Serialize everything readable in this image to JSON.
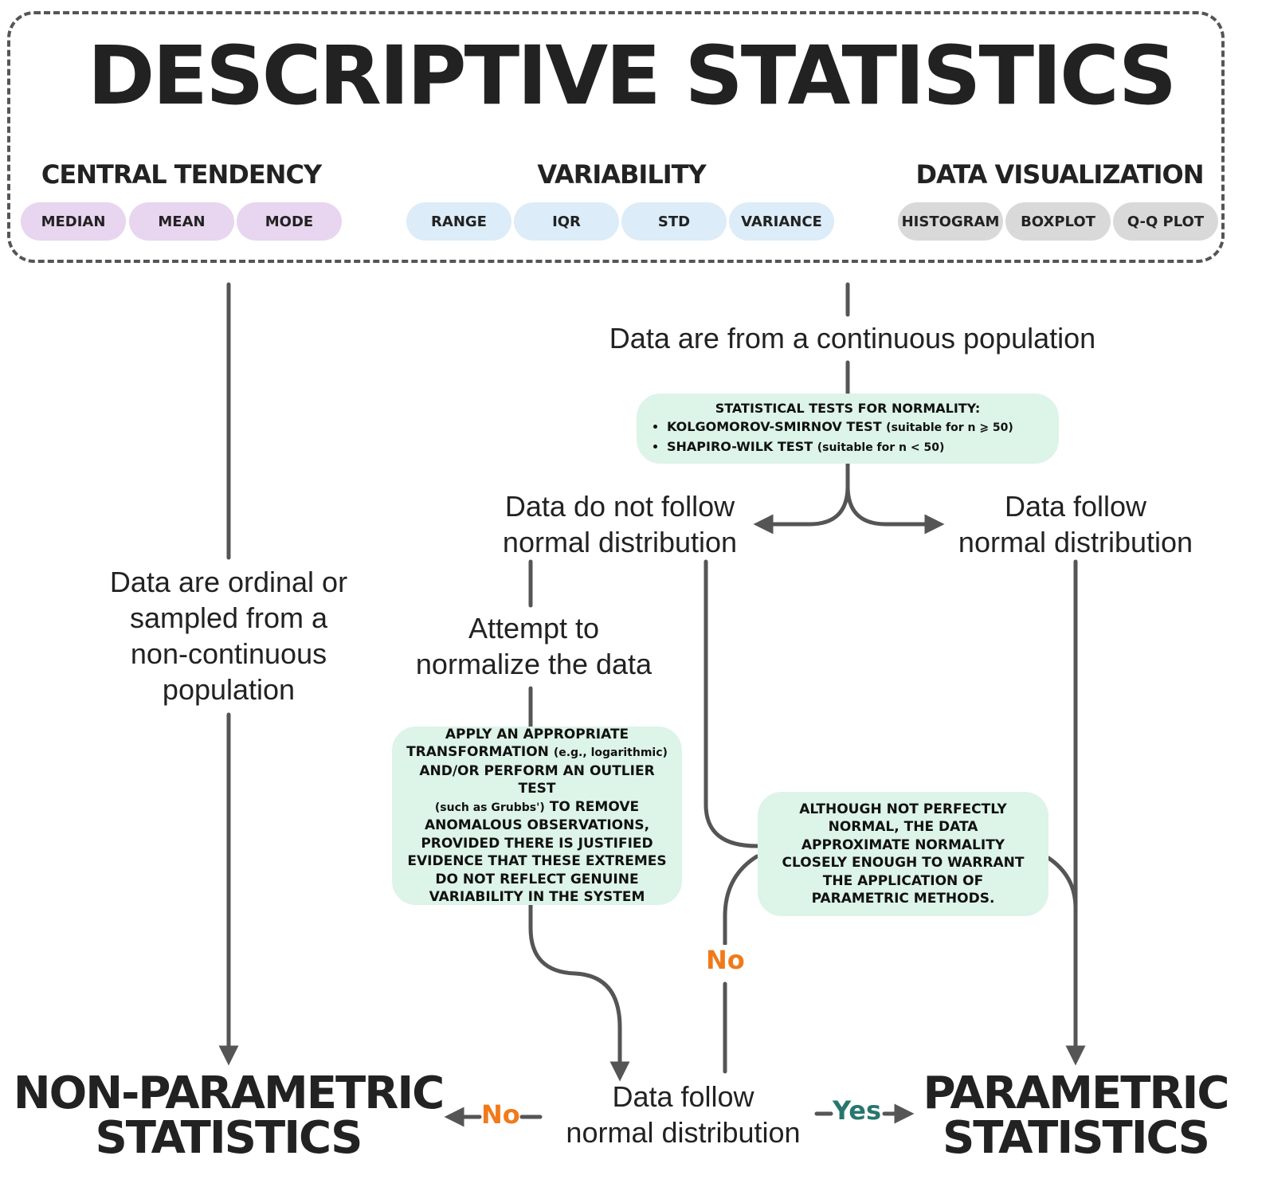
{
  "title": "DESCRIPTIVE STATISTICS",
  "groups": {
    "central_tendency": {
      "label": "CENTRAL TENDENCY",
      "items": [
        "MEDIAN",
        "MEAN",
        "MODE"
      ]
    },
    "variability": {
      "label": "VARIABILITY",
      "items": [
        "RANGE",
        "IQR",
        "STD",
        "VARIANCE"
      ]
    },
    "data_visualization": {
      "label": "DATA VISUALIZATION",
      "items": [
        "HISTOGRAM",
        "BOXPLOT",
        "Q-Q PLOT"
      ]
    }
  },
  "colors": {
    "line": "#555555",
    "box_green": "#ddf4e8",
    "pill_purple": "#e8d5ef",
    "pill_blue": "#dcecf8",
    "pill_gray": "#d9d9d9",
    "no": "#f07a1a",
    "yes": "#27766f"
  },
  "labels": {
    "continuous": "Data are from a continuous population",
    "ordinal": "Data are ordinal or\nsampled from a\nnon-continuous\npopulation",
    "not_normal": "Data do not follow\nnormal distribution",
    "normal": "Data follow\nnormal distribution",
    "attempt": "Attempt to\nnormalize the data",
    "follow_bottom": "Data follow\nnormal distribution"
  },
  "tests_box": {
    "heading": "STATISTICAL TESTS FOR NORMALITY:",
    "items": [
      {
        "main": "KOLGOMOROV-SMIRNOV TEST ",
        "note": "(suitable for n ⩾ 50)"
      },
      {
        "main": "SHAPIRO-WILK TEST ",
        "note": "(suitable for n < 50)"
      }
    ]
  },
  "transform_box": {
    "l1": "APPLY AN APPROPRIATE",
    "l2a": "TRANSFORMATION ",
    "l2b": "(e.g., logarithmic)",
    "l3": "AND/OR PERFORM AN OUTLIER TEST",
    "l4a": "(such as Grubbs')",
    "l4b": " TO REMOVE",
    "l5": "ANOMALOUS OBSERVATIONS,",
    "l6": "PROVIDED THERE IS JUSTIFIED",
    "l7": "EVIDENCE THAT THESE EXTREMES",
    "l8": "DO NOT REFLECT GENUINE",
    "l9": "VARIABILITY IN THE SYSTEM"
  },
  "approx_box": "ALTHOUGH NOT PERFECTLY NORMAL, THE DATA APPROXIMATE NORMALITY CLOSELY ENOUGH TO WARRANT THE APPLICATION OF PARAMETRIC METHODS.",
  "outcomes": {
    "nonparametric": "NON-PARAMETRIC\nSTATISTICS",
    "parametric": "PARAMETRIC\nSTATISTICS"
  },
  "edge_labels": {
    "no_middle": "No",
    "no_left": "No",
    "yes_right": "Yes"
  }
}
